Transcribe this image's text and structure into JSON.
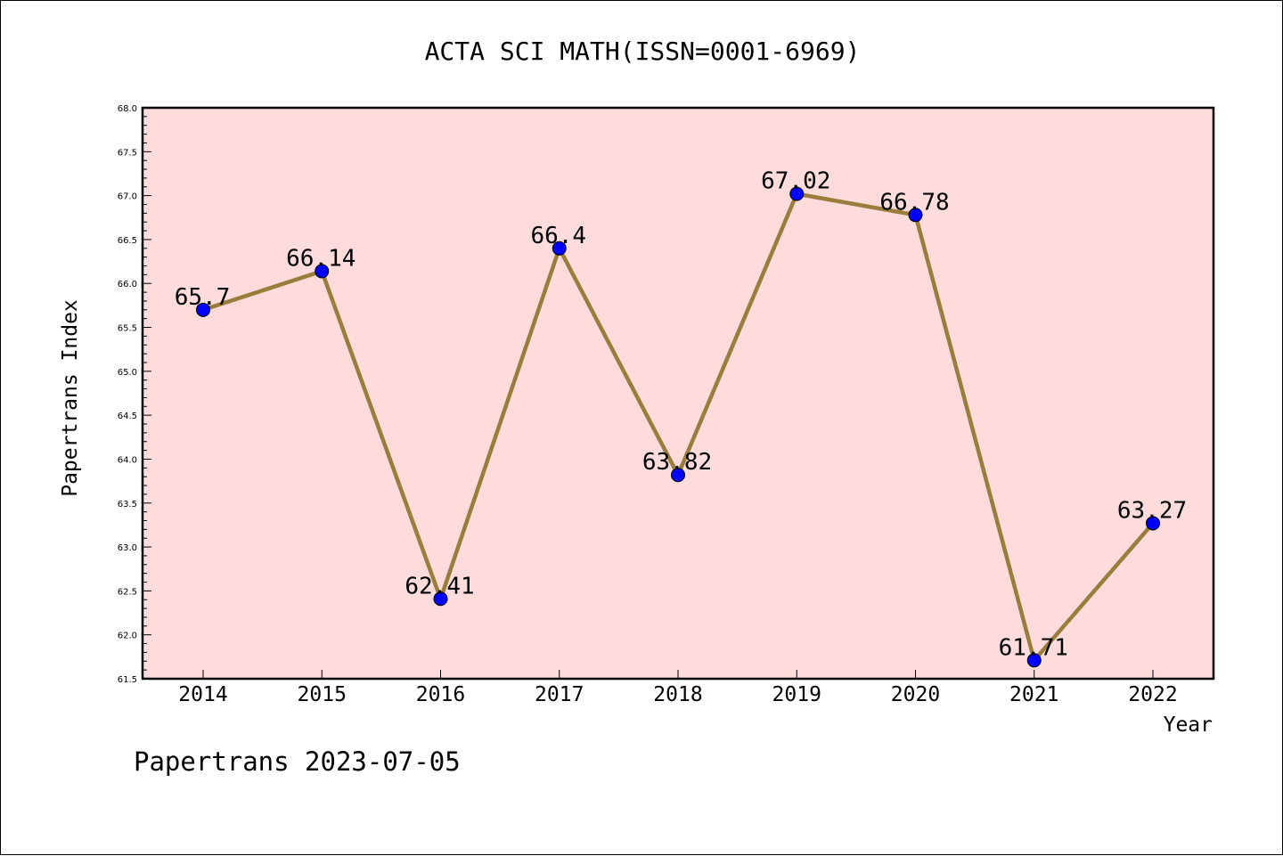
{
  "chart_data": {
    "type": "line",
    "title": "ACTA SCI MATH(ISSN=0001-6969)",
    "xlabel": "Year",
    "ylabel": "Papertrans Index",
    "categories": [
      "2014",
      "2015",
      "2016",
      "2017",
      "2018",
      "2019",
      "2020",
      "2021",
      "2022"
    ],
    "values": [
      65.7,
      66.14,
      62.41,
      66.4,
      63.82,
      67.02,
      66.78,
      61.71,
      63.27
    ],
    "data_labels": [
      "65.7",
      "66.14",
      "62.41",
      "66.4",
      "63.82",
      "67.02",
      "66.78",
      "61.71",
      "63.27"
    ],
    "ylim": [
      61.5,
      68.0
    ],
    "yticks": [
      "61.5",
      "62.0",
      "62.5",
      "63.0",
      "63.5",
      "64.0",
      "64.5",
      "65.0",
      "65.5",
      "66.0",
      "66.5",
      "67.0",
      "67.5",
      "68.0"
    ],
    "grid": false,
    "colors": {
      "plot_bg": "#fddcdb",
      "line": "#9a7d3c",
      "marker": "#0000ff"
    }
  },
  "footer": "Papertrans 2023-07-05"
}
